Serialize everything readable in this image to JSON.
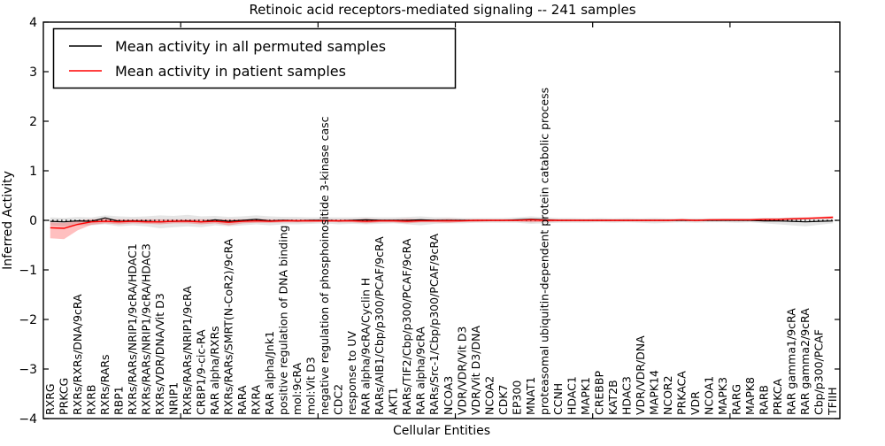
{
  "chart_data": {
    "type": "line",
    "title": "Retinoic acid receptors-mediated signaling -- 241 samples",
    "xlabel": "Cellular Entities",
    "ylabel": "Inferred Activity",
    "ylim": [
      -4,
      4
    ],
    "yticks": [
      -4,
      -3,
      -2,
      -1,
      0,
      1,
      2,
      3,
      4
    ],
    "xlim": [
      0,
      58
    ],
    "x_major_ticks": [
      10,
      20,
      30,
      40,
      50
    ],
    "grid": false,
    "legend_position": "upper left",
    "zero_line": {
      "y": 0,
      "style": "dashed",
      "color": "#000000"
    },
    "categories": [
      "RXRG",
      "PRKCG",
      "RXRs/RXRs/DNA/9cRA",
      "RXRB",
      "RXRs/RARs",
      "RBP1",
      "RXRs/RARs/NRIP1/9cRA/HDAC1",
      "RXRs/RARs/NRIP1/9cRA/HDAC3",
      "RXRs/VDR/DNA/Vit D3",
      "NRIP1",
      "RXRs/RARs/NRIP1/9cRA",
      "CRBP1/9-cic-RA",
      "RAR alpha/RXRs",
      "RXRs/RARs/SMRT(N-CoR2)/9cRA",
      "RARA",
      "RXRA",
      "RAR alpha/Jnk1",
      "positive regulation of DNA binding",
      "mol:9cRA",
      "mol:Vit D3",
      "negative regulation of phosphoinositide 3-kinase casc",
      "CDC2",
      "response to UV",
      "RAR alpha/9cRA/Cyclin H",
      "RARs/AIB1/Cbp/p300/PCAF/9cRA",
      "AKT1",
      "RARs/TIF2/Cbp/p300/PCAF/9cRA",
      "RAR alpha/9cRA",
      "RARs/Src-1/Cbp/p300/PCAF/9cRA",
      "NCOA3",
      "VDR/VDR/Vit D3",
      "VDR/Vit D3/DNA",
      "NCOA2",
      "CDK7",
      "EP300",
      "MNAT1",
      "proteasomal ubiquitin-dependent protein catabolic process",
      "CCNH",
      "HDAC1",
      "MAPK1",
      "CREBBP",
      "KAT2B",
      "HDAC3",
      "VDR/VDR/DNA",
      "MAPK14",
      "NCOR2",
      "PRKACA",
      "VDR",
      "NCOA1",
      "MAPK3",
      "RARG",
      "MAPK8",
      "RARB",
      "PRKCA",
      "RAR gamma1/9cRA",
      "RAR gamma2/9cRA",
      "Cbp/p300/PCAF",
      "TFIIH"
    ],
    "series": [
      {
        "name": "Mean activity in all permuted samples",
        "color": "#000000",
        "band_color": "#aaaaaa",
        "values": [
          -0.02,
          -0.03,
          -0.01,
          -0.02,
          0.05,
          -0.02,
          -0.01,
          -0.02,
          -0.03,
          -0.02,
          -0.01,
          -0.03,
          0.01,
          -0.02,
          0,
          0.02,
          -0.01,
          0,
          -0.01,
          0,
          0,
          -0.01,
          0,
          0.01,
          0,
          0,
          0,
          0.01,
          0,
          0,
          0,
          0,
          0,
          0,
          0.01,
          0.02,
          0.01,
          0,
          0,
          0,
          0,
          0,
          0,
          0,
          0,
          0,
          0,
          0,
          0,
          0,
          0,
          0,
          -0.01,
          -0.01,
          -0.02,
          -0.03,
          -0.02,
          -0.01
        ],
        "band_lower": [
          -0.1,
          -0.12,
          -0.1,
          -0.1,
          -0.08,
          -0.12,
          -0.1,
          -0.12,
          -0.16,
          -0.14,
          -0.12,
          -0.14,
          -0.1,
          -0.12,
          -0.1,
          -0.08,
          -0.1,
          -0.08,
          -0.08,
          -0.07,
          -0.06,
          -0.08,
          -0.07,
          -0.08,
          -0.07,
          -0.06,
          -0.08,
          -0.1,
          -0.07,
          -0.06,
          -0.06,
          -0.05,
          -0.05,
          -0.05,
          -0.05,
          -0.07,
          -0.06,
          -0.05,
          -0.05,
          -0.05,
          -0.04,
          -0.05,
          -0.04,
          -0.05,
          -0.06,
          -0.05,
          -0.04,
          -0.05,
          -0.04,
          -0.04,
          -0.05,
          -0.04,
          -0.06,
          -0.08,
          -0.1,
          -0.12,
          -0.09,
          -0.06
        ],
        "band_upper": [
          0.06,
          0.05,
          0.07,
          0.06,
          0.1,
          0.08,
          0.07,
          0.08,
          0.1,
          0.09,
          0.11,
          0.08,
          0.09,
          0.07,
          0.08,
          0.1,
          0.08,
          0.07,
          0.07,
          0.06,
          0.06,
          0.06,
          0.06,
          0.07,
          0.06,
          0.06,
          0.07,
          0.08,
          0.06,
          0.06,
          0.05,
          0.05,
          0.05,
          0.05,
          0.06,
          0.08,
          0.06,
          0.05,
          0.05,
          0.04,
          0.05,
          0.04,
          0.05,
          0.04,
          0.05,
          0.04,
          0.04,
          0.04,
          0.04,
          0.04,
          0.04,
          0.04,
          0.05,
          0.05,
          0.06,
          0.06,
          0.05,
          0.05
        ]
      },
      {
        "name": "Mean activity in patient samples",
        "color": "#ff0000",
        "band_color": "#ff9999",
        "values": [
          -0.15,
          -0.16,
          -0.08,
          -0.03,
          -0.02,
          -0.03,
          -0.02,
          -0.03,
          -0.03,
          -0.02,
          -0.02,
          -0.03,
          -0.02,
          -0.04,
          -0.02,
          -0.01,
          -0.02,
          -0.01,
          -0.01,
          -0.01,
          -0.01,
          -0.01,
          -0.01,
          -0.02,
          -0.01,
          -0.01,
          -0.02,
          -0.01,
          -0.01,
          -0.01,
          -0.01,
          0,
          0,
          0,
          0,
          0.01,
          0,
          0,
          0,
          0,
          0,
          0,
          0,
          0,
          0,
          0,
          0.01,
          0,
          0.01,
          0.01,
          0.01,
          0.01,
          0.02,
          0.02,
          0.03,
          0.04,
          0.05,
          0.06
        ],
        "band_lower": [
          -0.36,
          -0.38,
          -0.2,
          -0.09,
          -0.06,
          -0.08,
          -0.06,
          -0.07,
          -0.08,
          -0.06,
          -0.06,
          -0.08,
          -0.06,
          -0.1,
          -0.06,
          -0.05,
          -0.05,
          -0.04,
          -0.04,
          -0.04,
          -0.03,
          -0.04,
          -0.04,
          -0.06,
          -0.04,
          -0.04,
          -0.06,
          -0.04,
          -0.04,
          -0.05,
          -0.03,
          -0.03,
          -0.02,
          -0.02,
          -0.02,
          -0.04,
          -0.03,
          -0.02,
          -0.02,
          -0.02,
          -0.02,
          -0.02,
          -0.02,
          -0.02,
          -0.02,
          -0.02,
          -0.01,
          -0.02,
          -0.01,
          -0.01,
          -0.01,
          -0.01,
          0,
          0,
          0.01,
          0.02,
          0.03,
          0.03
        ],
        "band_upper": [
          -0.04,
          -0.05,
          0,
          0.02,
          0.03,
          0.02,
          0.02,
          0.02,
          0.02,
          0.02,
          0.02,
          0.02,
          0.02,
          0.02,
          0.02,
          0.03,
          0.02,
          0.02,
          0.02,
          0.02,
          0.02,
          0.02,
          0.02,
          0.03,
          0.02,
          0.02,
          0.03,
          0.02,
          0.02,
          0.03,
          0.02,
          0.02,
          0.02,
          0.02,
          0.02,
          0.04,
          0.03,
          0.02,
          0.02,
          0.02,
          0.02,
          0.02,
          0.02,
          0.02,
          0.02,
          0.02,
          0.02,
          0.02,
          0.02,
          0.03,
          0.03,
          0.03,
          0.04,
          0.04,
          0.05,
          0.06,
          0.07,
          0.09
        ]
      }
    ]
  }
}
